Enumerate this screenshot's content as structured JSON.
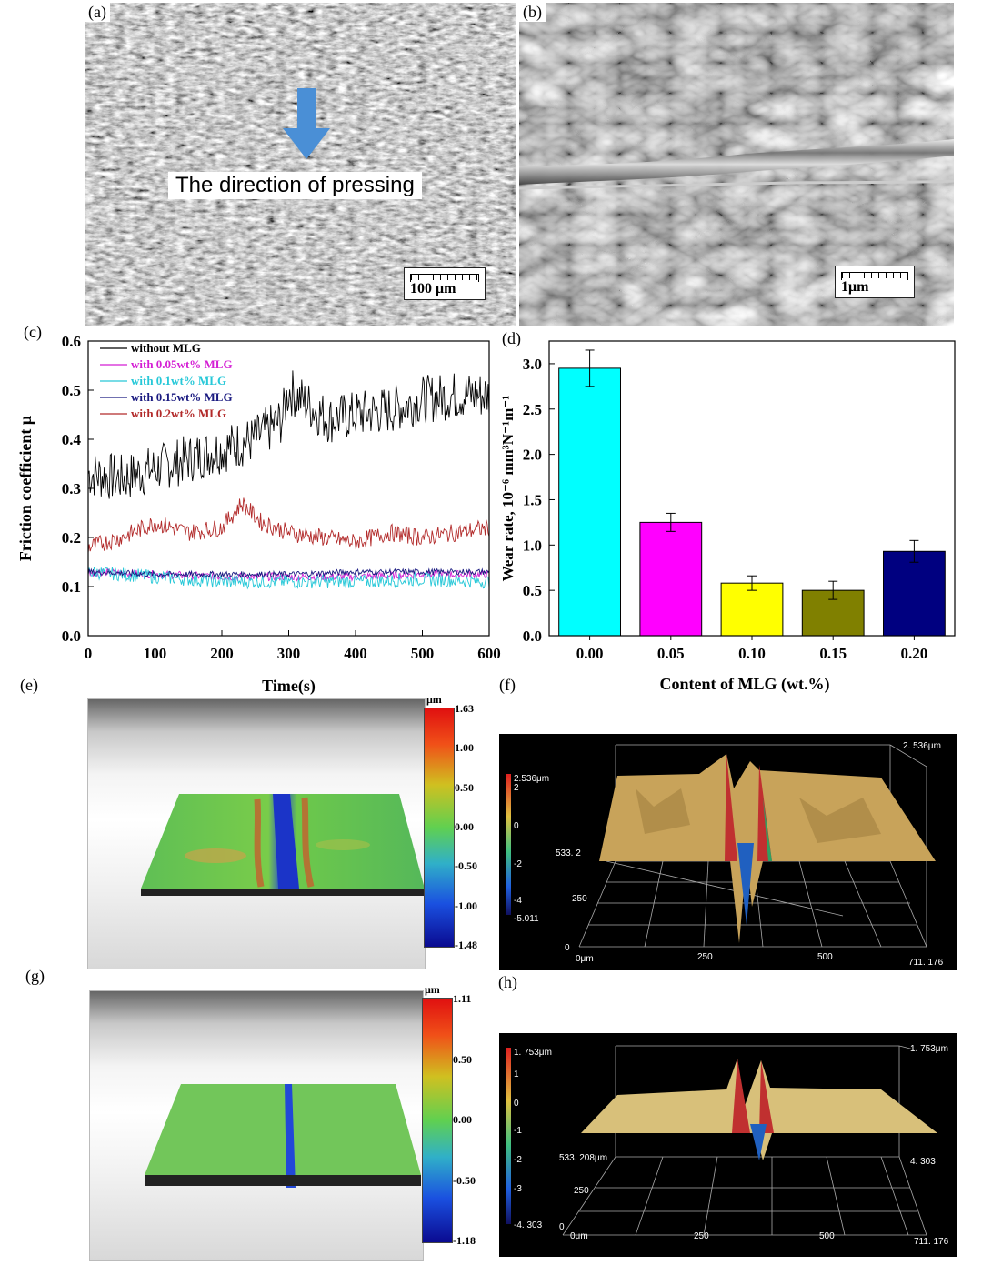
{
  "panels": {
    "a": {
      "label": "(a)",
      "annotation": "The direction of pressing",
      "scale_bar": "100 μm",
      "arrow_icon": "down-arrow-icon",
      "arrow_color": "#4a8fd6"
    },
    "b": {
      "label": "(b)",
      "scale_bar": "1μm"
    },
    "c": {
      "label": "(c)"
    },
    "d": {
      "label": "(d)"
    },
    "e": {
      "label": "(e)",
      "colorbar_unit": "μm",
      "colorbar_ticks": [
        "1.63",
        "1.00",
        "0.50",
        "0.00",
        "-0.50",
        "-1.00",
        "-1.48"
      ]
    },
    "f": {
      "label": "(f)",
      "colorbar_ticks": [
        "2.536μm",
        "2",
        "0",
        "-2",
        "-4",
        "-5.011"
      ],
      "z_top": "2. 536μm",
      "axis_y": [
        "533. 2",
        "250",
        "0"
      ],
      "axis_x": [
        "0μm",
        "250",
        "500",
        "711. 176"
      ]
    },
    "g": {
      "label": "(g)",
      "colorbar_unit": "μm",
      "colorbar_ticks": [
        "1.11",
        "0.50",
        "0.00",
        "-0.50",
        "-1.18"
      ]
    },
    "h": {
      "label": "(h)",
      "colorbar_ticks": [
        "1. 753μm",
        "1",
        "0",
        "-1",
        "-2",
        "-3",
        "-4. 303"
      ],
      "z_top": "1. 753μm",
      "z_bottom": "4. 303",
      "axis_y": [
        "533. 208μm",
        "250",
        "0"
      ],
      "axis_x": [
        "0μm",
        "250",
        "500",
        "711. 176"
      ]
    }
  },
  "chart_data": [
    {
      "type": "line",
      "xlabel": "Time(s)",
      "ylabel": "Friction coefficient μ",
      "xlim": [
        0,
        600
      ],
      "ylim": [
        0.0,
        0.6
      ],
      "x_ticks": [
        "0",
        "100",
        "200",
        "300",
        "400",
        "500",
        "600"
      ],
      "y_ticks": [
        "0.0",
        "0.1",
        "0.2",
        "0.3",
        "0.4",
        "0.5",
        "0.6"
      ],
      "legend_position": "top-left",
      "series": [
        {
          "name": "without MLG",
          "color": "#000000",
          "x": [
            0,
            50,
            100,
            150,
            200,
            250,
            290,
            300,
            330,
            360,
            400,
            450,
            500,
            550,
            600
          ],
          "y": [
            0.33,
            0.32,
            0.34,
            0.36,
            0.38,
            0.4,
            0.44,
            0.5,
            0.47,
            0.44,
            0.45,
            0.46,
            0.48,
            0.49,
            0.49
          ]
        },
        {
          "name": "with 0.05wt% MLG",
          "color": "#d41fd4",
          "x": [
            0,
            100,
            200,
            300,
            400,
            500,
            600
          ],
          "y": [
            0.13,
            0.125,
            0.12,
            0.12,
            0.12,
            0.125,
            0.125
          ]
        },
        {
          "name": "with 0.1wt% MLG",
          "color": "#27c8d8",
          "x": [
            0,
            100,
            200,
            300,
            400,
            500,
            600
          ],
          "y": [
            0.13,
            0.12,
            0.11,
            0.11,
            0.11,
            0.115,
            0.11
          ]
        },
        {
          "name": "with 0.15wt% MLG",
          "color": "#1a1a80",
          "x": [
            0,
            100,
            200,
            300,
            400,
            500,
            600
          ],
          "y": [
            0.13,
            0.125,
            0.125,
            0.125,
            0.13,
            0.13,
            0.13
          ]
        },
        {
          "name": "with 0.2wt% MLG",
          "color": "#b22a2a",
          "x": [
            0,
            50,
            100,
            150,
            200,
            230,
            260,
            300,
            350,
            400,
            450,
            500,
            550,
            600
          ],
          "y": [
            0.18,
            0.2,
            0.23,
            0.21,
            0.22,
            0.27,
            0.23,
            0.21,
            0.2,
            0.19,
            0.21,
            0.2,
            0.21,
            0.22
          ]
        }
      ]
    },
    {
      "type": "bar",
      "xlabel": "Content of MLG (wt.%)",
      "ylabel": "Wear rate, 10⁻⁶ mm³N⁻¹m⁻¹",
      "categories": [
        "0.00",
        "0.05",
        "0.10",
        "0.15",
        "0.20"
      ],
      "values": [
        2.95,
        1.25,
        0.58,
        0.5,
        0.93
      ],
      "errors": [
        0.2,
        0.1,
        0.08,
        0.1,
        0.12
      ],
      "colors": [
        "#00ffff",
        "#ff00ff",
        "#ffff00",
        "#808000",
        "#000080"
      ],
      "ylim": [
        0.0,
        3.25
      ],
      "y_ticks": [
        "0.0",
        "0.5",
        "1.0",
        "1.5",
        "2.0",
        "2.5",
        "3.0"
      ]
    }
  ]
}
